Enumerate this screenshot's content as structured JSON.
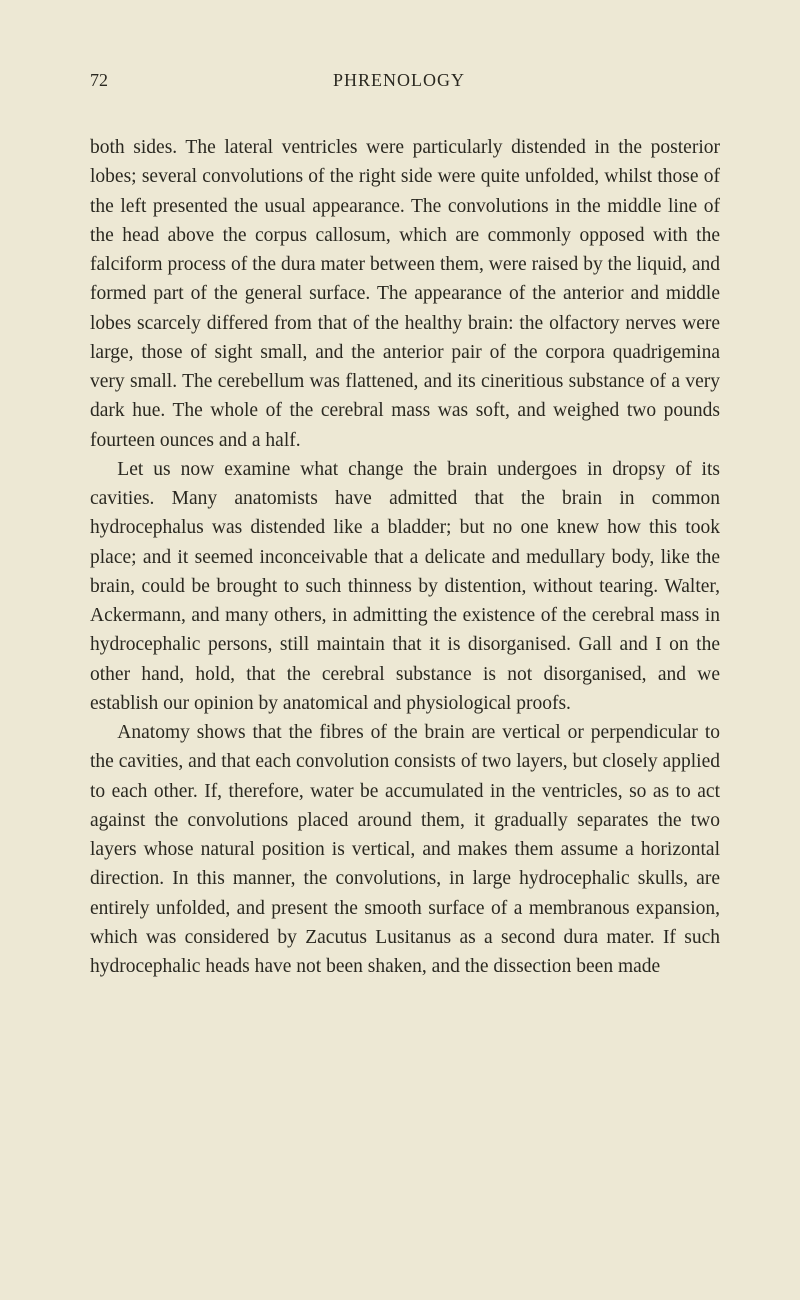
{
  "page": {
    "number": "72",
    "chapter": "PHRENOLOGY",
    "background_color": "#ede8d4",
    "text_color": "#2a2820",
    "font_family": "Century Schoolbook, Georgia, serif",
    "body_fontsize": 19.5,
    "header_fontsize": 18,
    "line_height": 1.5,
    "paragraphs": [
      "both sides. The lateral ventricles were particularly distended in the posterior lobes; several convolutions of the right side were quite unfolded, whilst those of the left presented the usual appearance. The convolutions in the middle line of the head above the corpus callosum, which are commonly opposed with the falciform process of the dura mater between them, were raised by the liquid, and formed part of the general surface. The appearance of the anterior and middle lobes scarcely differed from that of the healthy brain: the olfactory nerves were large, those of sight small, and the anterior pair of the corpora quadrigemina very small. The cerebellum was flattened, and its cineritious substance of a very dark hue. The whole of the cerebral mass was soft, and weighed two pounds fourteen ounces and a half.",
      "Let us now examine what change the brain undergoes in dropsy of its cavities. Many anatomists have admitted that the brain in common hydrocephalus was distended like a bladder; but no one knew how this took place; and it seemed inconceivable that a delicate and medullary body, like the brain, could be brought to such thinness by distention, without tearing. Walter, Ackermann, and many others, in admitting the existence of the cerebral mass in hydrocephalic persons, still maintain that it is disorganised. Gall and I on the other hand, hold, that the cerebral substance is not disorganised, and we establish our opinion by anatomical and physiological proofs.",
      "Anatomy shows that the fibres of the brain are vertical or perpendicular to the cavities, and that each convolution consists of two layers, but closely applied to each other. If, therefore, water be accumulated in the ventricles, so as to act against the convolutions placed around them, it gradually separates the two layers whose natural position is vertical, and makes them assume a horizontal direction. In this manner, the convolutions, in large hydrocephalic skulls, are entirely unfolded, and present the smooth surface of a membranous expansion, which was considered by Zacutus Lusitanus as a second dura mater. If such hydrocephalic heads have not been shaken, and the dissection been made"
    ]
  }
}
